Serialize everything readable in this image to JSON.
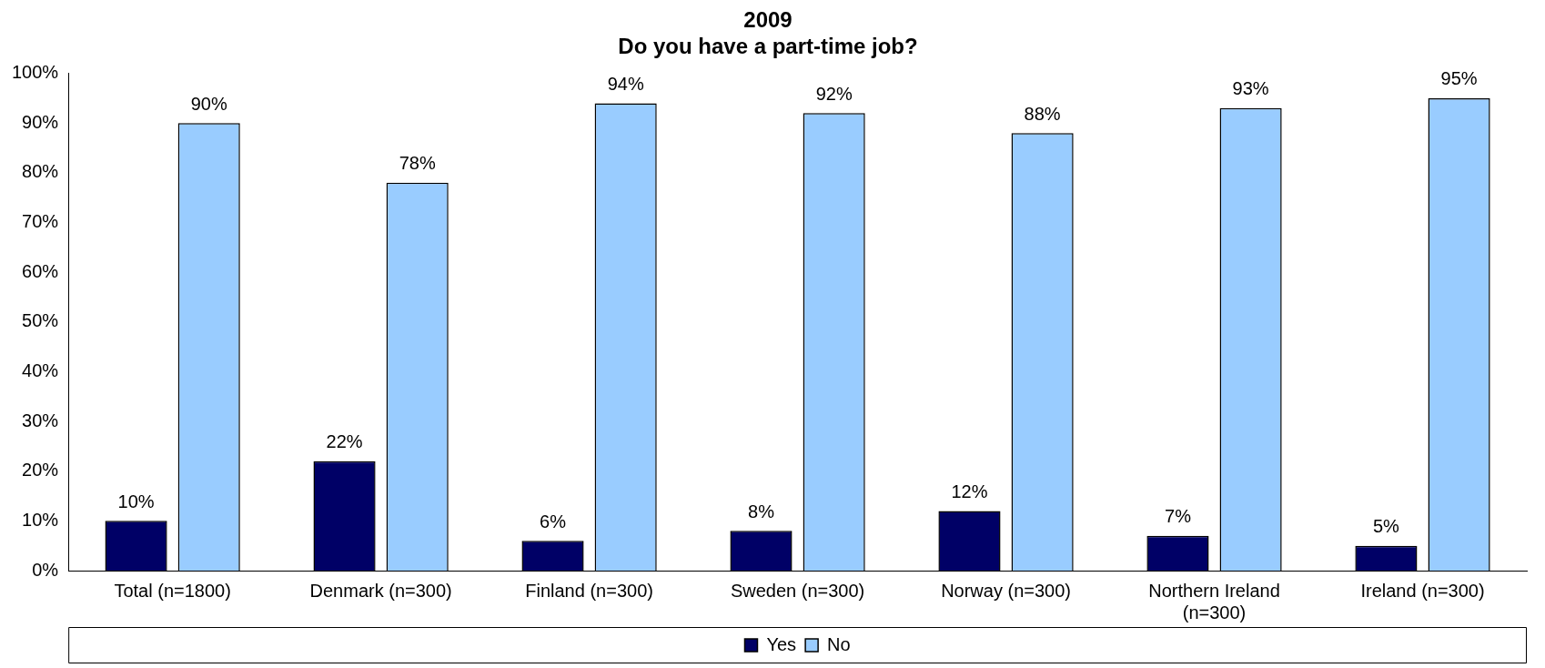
{
  "chart_data": {
    "type": "bar",
    "title": "2009\nDo you have a part-time job?",
    "categories": [
      "Total (n=1800)",
      "Denmark (n=300)",
      "Finland (n=300)",
      "Sweden (n=300)",
      "Norway (n=300)",
      "Northern Ireland (n=300)",
      "Ireland (n=300)"
    ],
    "series": [
      {
        "name": "Yes",
        "color": "#000066",
        "values": [
          10,
          22,
          6,
          8,
          12,
          7,
          5
        ],
        "value_labels": [
          "10%",
          "22%",
          "6%",
          "8%",
          "12%",
          "7%",
          "5%"
        ]
      },
      {
        "name": "No",
        "color": "#99ccff",
        "values": [
          90,
          78,
          94,
          92,
          88,
          93,
          95
        ],
        "value_labels": [
          "90%",
          "78%",
          "94%",
          "92%",
          "88%",
          "93%",
          "95%"
        ]
      }
    ],
    "ylim": [
      0,
      100
    ],
    "yticks": [
      {
        "value": 0,
        "label": "0%"
      },
      {
        "value": 10,
        "label": "10%"
      },
      {
        "value": 20,
        "label": "20%"
      },
      {
        "value": 30,
        "label": "30%"
      },
      {
        "value": 40,
        "label": "40%"
      },
      {
        "value": 50,
        "label": "50%"
      },
      {
        "value": 60,
        "label": "60%"
      },
      {
        "value": 70,
        "label": "70%"
      },
      {
        "value": 80,
        "label": "80%"
      },
      {
        "value": 90,
        "label": "90%"
      },
      {
        "value": 100,
        "label": "100%"
      }
    ],
    "grid": false,
    "legend": "bottom"
  }
}
